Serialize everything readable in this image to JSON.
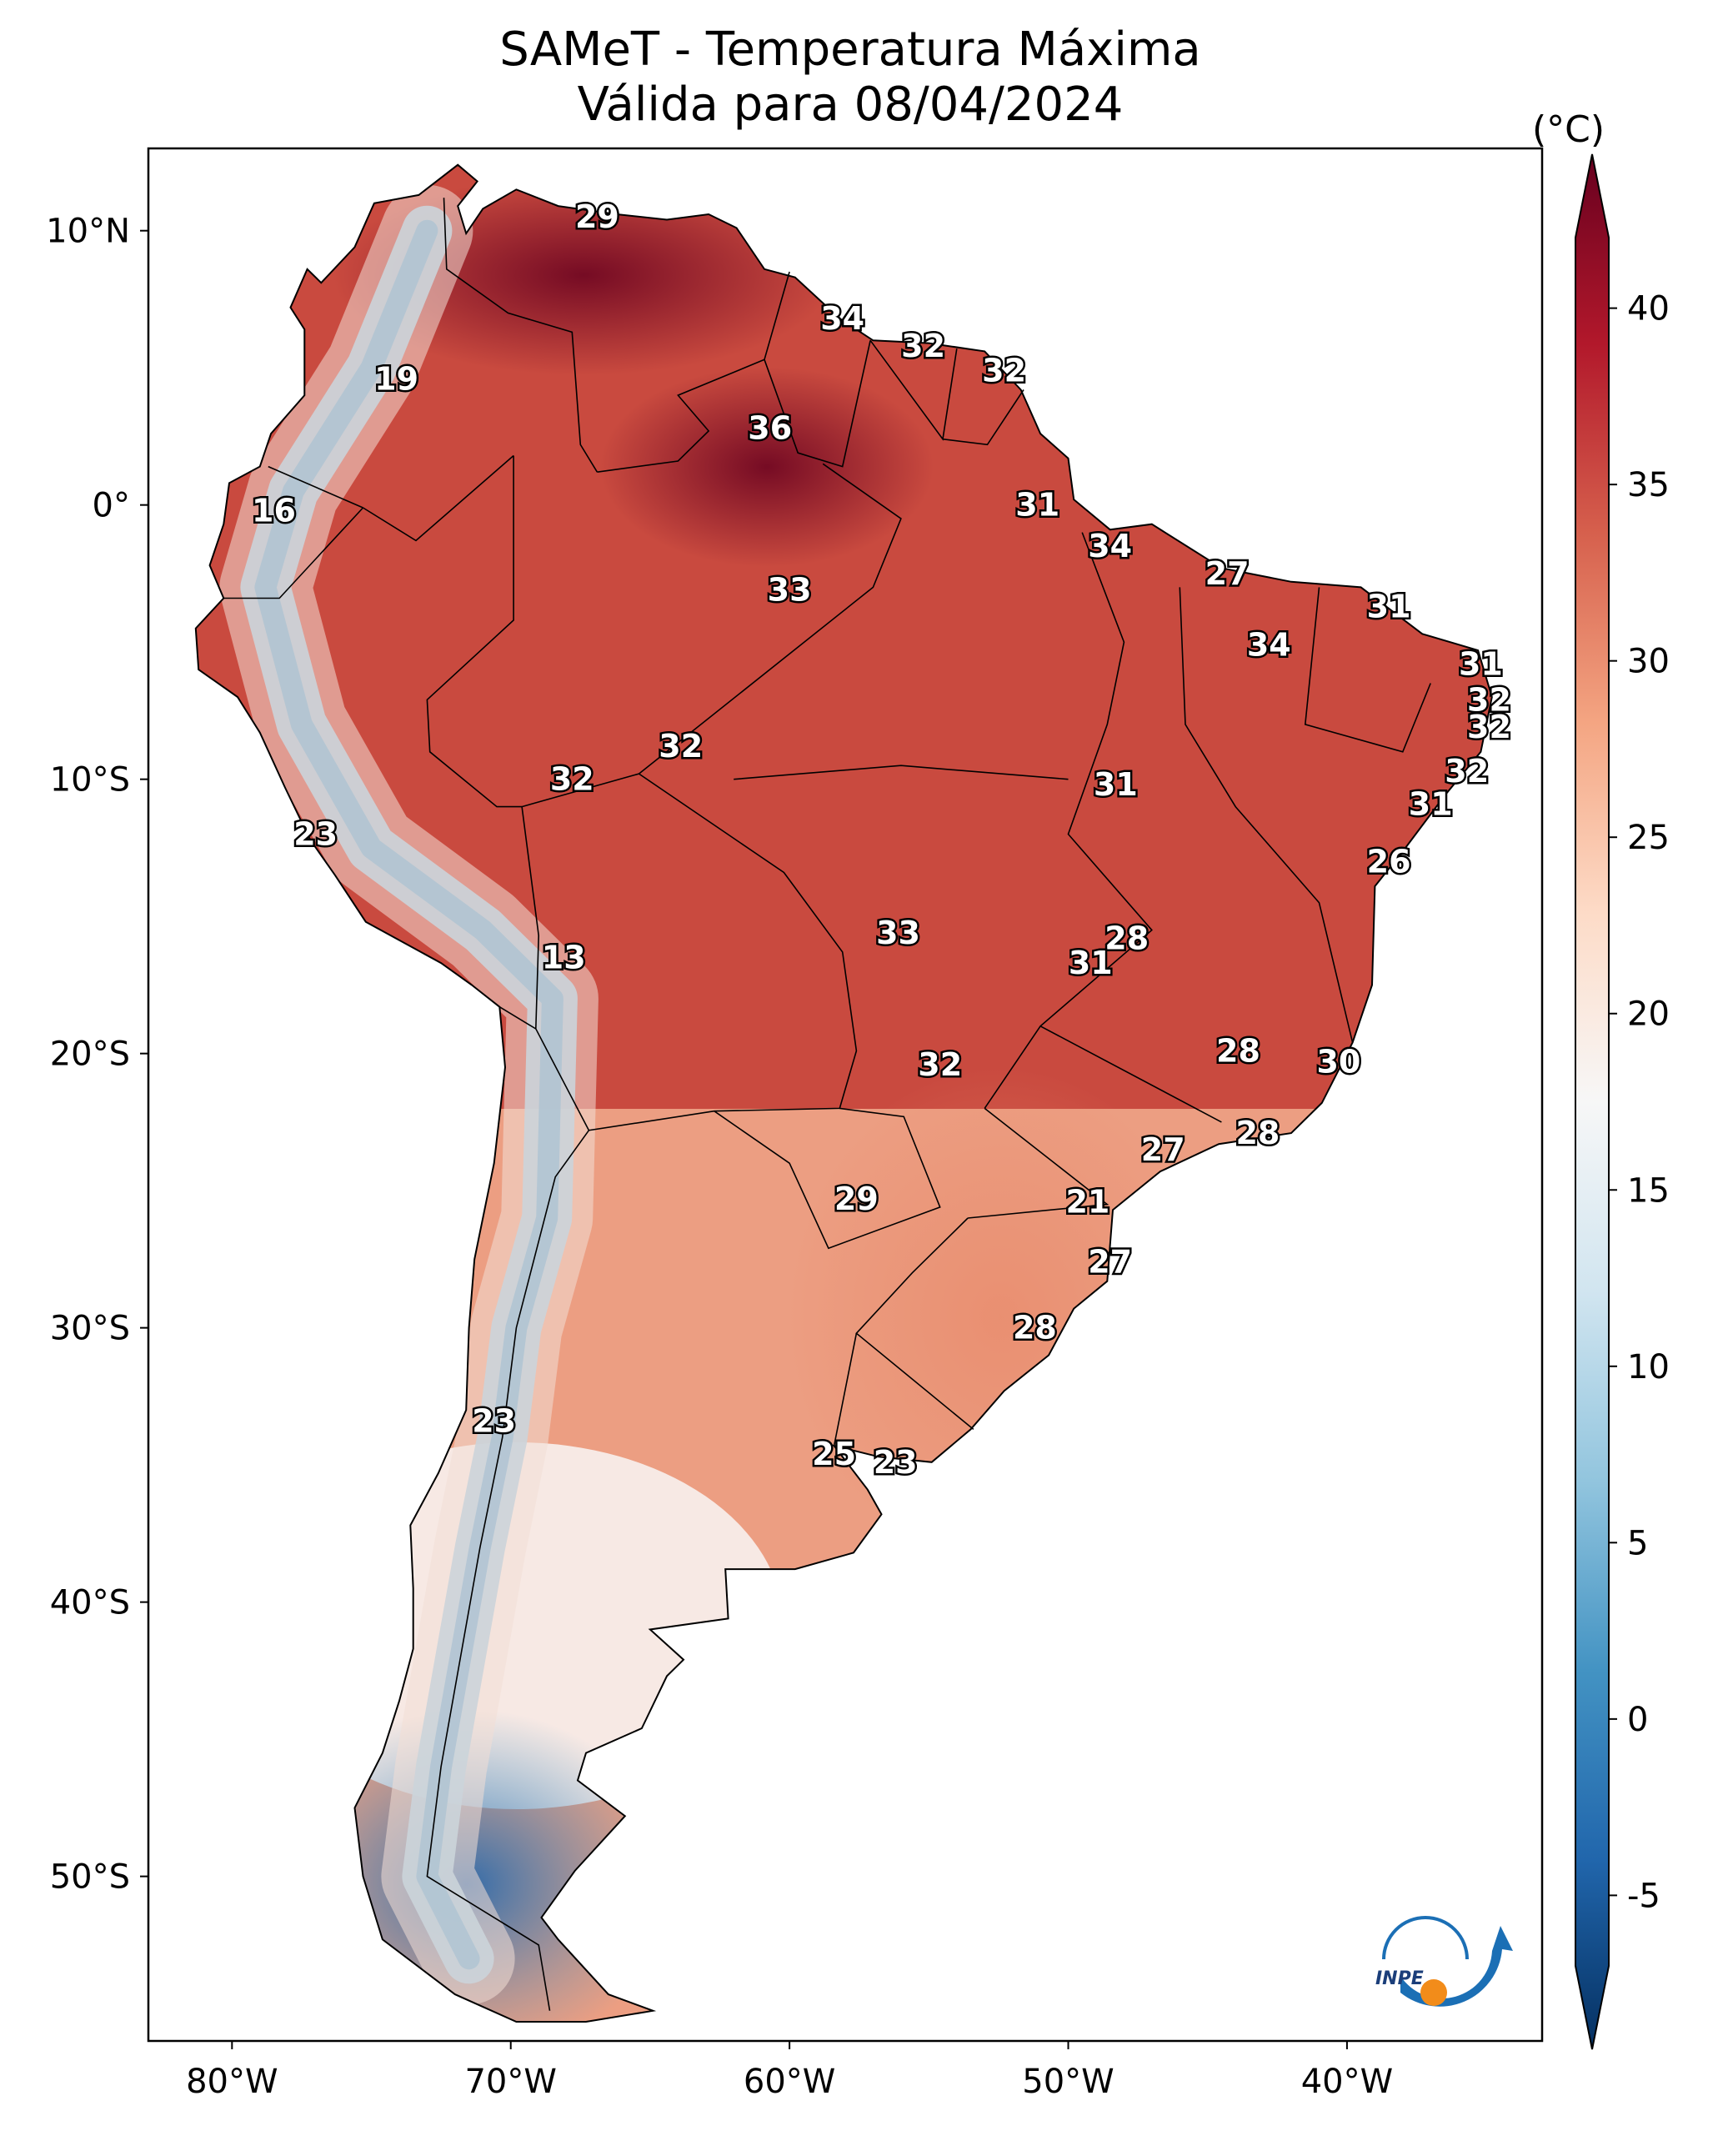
{
  "title": {
    "line1": "SAMeT - Temperatura Máxima",
    "line2": "Válida para 08/04/2024"
  },
  "colorbar": {
    "unit": "(°C)",
    "ticks": [
      {
        "value": 40,
        "label": "40"
      },
      {
        "value": 35,
        "label": "35"
      },
      {
        "value": 30,
        "label": "30"
      },
      {
        "value": 25,
        "label": "25"
      },
      {
        "value": 20,
        "label": "20"
      },
      {
        "value": 15,
        "label": "15"
      },
      {
        "value": 10,
        "label": "10"
      },
      {
        "value": 5,
        "label": "5"
      },
      {
        "value": 0,
        "label": "0"
      },
      {
        "value": -5,
        "label": "-5"
      }
    ],
    "range": [
      -7,
      42
    ],
    "colors": [
      "#053061",
      "#2166ac",
      "#4393c3",
      "#92c5de",
      "#d1e5f0",
      "#f7f7f7",
      "#fddbc7",
      "#f4a582",
      "#d6604d",
      "#b2182b",
      "#67001f"
    ]
  },
  "axes": {
    "lon_range": [
      -83,
      -33
    ],
    "lat_range": [
      -56,
      13
    ],
    "lat_ticks": [
      {
        "value": 10,
        "label": "10°N"
      },
      {
        "value": 0,
        "label": "0°"
      },
      {
        "value": -10,
        "label": "10°S"
      },
      {
        "value": -20,
        "label": "20°S"
      },
      {
        "value": -30,
        "label": "30°S"
      },
      {
        "value": -40,
        "label": "40°S"
      },
      {
        "value": -50,
        "label": "50°S"
      }
    ],
    "lon_ticks": [
      {
        "value": -80,
        "label": "80°W"
      },
      {
        "value": -70,
        "label": "70°W"
      },
      {
        "value": -60,
        "label": "60°W"
      },
      {
        "value": -50,
        "label": "50°W"
      },
      {
        "value": -40,
        "label": "40°W"
      }
    ]
  },
  "city_labels": [
    {
      "value": "29",
      "lon": -66.9,
      "lat": 10.5
    },
    {
      "value": "34",
      "lon": -58.1,
      "lat": 6.8
    },
    {
      "value": "32",
      "lon": -55.2,
      "lat": 5.8
    },
    {
      "value": "32",
      "lon": -52.3,
      "lat": 4.9
    },
    {
      "value": "19",
      "lon": -74.1,
      "lat": 4.6
    },
    {
      "value": "36",
      "lon": -60.7,
      "lat": 2.8
    },
    {
      "value": "31",
      "lon": -51.1,
      "lat": 0.0
    },
    {
      "value": "16",
      "lon": -78.5,
      "lat": -0.2
    },
    {
      "value": "34",
      "lon": -48.5,
      "lat": -1.5
    },
    {
      "value": "27",
      "lon": -44.3,
      "lat": -2.5
    },
    {
      "value": "33",
      "lon": -60.0,
      "lat": -3.1
    },
    {
      "value": "31",
      "lon": -38.5,
      "lat": -3.7
    },
    {
      "value": "34",
      "lon": -42.8,
      "lat": -5.1
    },
    {
      "value": "31",
      "lon": -35.2,
      "lat": -5.8
    },
    {
      "value": "32",
      "lon": -34.9,
      "lat": -7.1
    },
    {
      "value": "32",
      "lon": -34.9,
      "lat": -8.1
    },
    {
      "value": "32",
      "lon": -63.9,
      "lat": -8.8
    },
    {
      "value": "32",
      "lon": -67.8,
      "lat": -10.0
    },
    {
      "value": "32",
      "lon": -35.7,
      "lat": -9.7
    },
    {
      "value": "31",
      "lon": -48.3,
      "lat": -10.2
    },
    {
      "value": "31",
      "lon": -37.0,
      "lat": -10.9
    },
    {
      "value": "23",
      "lon": -77.0,
      "lat": -12.0
    },
    {
      "value": "26",
      "lon": -38.5,
      "lat": -13.0
    },
    {
      "value": "28",
      "lon": -47.9,
      "lat": -15.8
    },
    {
      "value": "33",
      "lon": -56.1,
      "lat": -15.6
    },
    {
      "value": "31",
      "lon": -49.2,
      "lat": -16.7
    },
    {
      "value": "13",
      "lon": -68.1,
      "lat": -16.5
    },
    {
      "value": "28",
      "lon": -43.9,
      "lat": -19.9
    },
    {
      "value": "30",
      "lon": -40.3,
      "lat": -20.3
    },
    {
      "value": "32",
      "lon": -54.6,
      "lat": -20.4
    },
    {
      "value": "28",
      "lon": -43.2,
      "lat": -22.9
    },
    {
      "value": "27",
      "lon": -46.6,
      "lat": -23.5
    },
    {
      "value": "29",
      "lon": -57.6,
      "lat": -25.3
    },
    {
      "value": "21",
      "lon": -49.3,
      "lat": -25.4
    },
    {
      "value": "27",
      "lon": -48.5,
      "lat": -27.6
    },
    {
      "value": "28",
      "lon": -51.2,
      "lat": -30.0
    },
    {
      "value": "23",
      "lon": -70.6,
      "lat": -33.4
    },
    {
      "value": "25",
      "lon": -58.4,
      "lat": -34.6
    },
    {
      "value": "23",
      "lon": -56.2,
      "lat": -34.9
    }
  ]
}
